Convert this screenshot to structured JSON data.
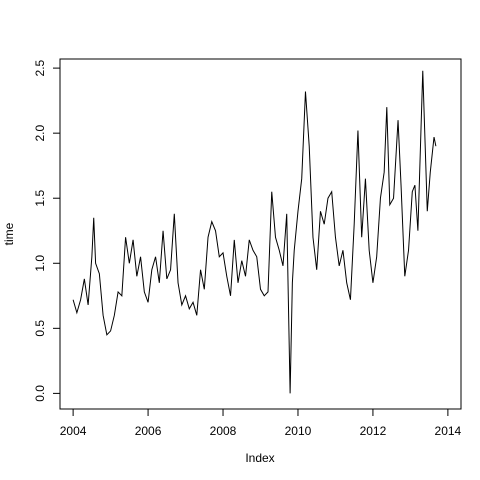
{
  "chart_data": {
    "type": "line",
    "xlabel": "Index",
    "ylabel": "time",
    "color": "#000000",
    "xlim": [
      2003.65,
      2014.35
    ],
    "ylim": [
      -0.12,
      2.57
    ],
    "xticks": [
      2004,
      2006,
      2008,
      2010,
      2012,
      2014
    ],
    "yticks": [
      {
        "value": 0,
        "label": "0.0"
      },
      0.5,
      {
        "value": 1,
        "label": "1.0"
      },
      1.5,
      {
        "value": 2,
        "label": "2.0"
      },
      2.5
    ],
    "x": [
      2004.0,
      2004.1,
      2004.2,
      2004.3,
      2004.4,
      2004.5,
      2004.55,
      2004.6,
      2004.7,
      2004.8,
      2004.9,
      2005.0,
      2005.1,
      2005.2,
      2005.3,
      2005.4,
      2005.5,
      2005.6,
      2005.7,
      2005.8,
      2005.9,
      2006.0,
      2006.1,
      2006.2,
      2006.3,
      2006.4,
      2006.5,
      2006.6,
      2006.7,
      2006.8,
      2006.9,
      2007.0,
      2007.1,
      2007.2,
      2007.3,
      2007.4,
      2007.5,
      2007.6,
      2007.7,
      2007.8,
      2007.9,
      2008.0,
      2008.1,
      2008.2,
      2008.3,
      2008.4,
      2008.5,
      2008.6,
      2008.7,
      2008.8,
      2008.9,
      2009.0,
      2009.1,
      2009.2,
      2009.3,
      2009.4,
      2009.5,
      2009.6,
      2009.7,
      2009.79,
      2009.85,
      2009.9,
      2010.0,
      2010.1,
      2010.2,
      2010.3,
      2010.4,
      2010.5,
      2010.6,
      2010.7,
      2010.8,
      2010.9,
      2011.0,
      2011.1,
      2011.2,
      2011.3,
      2011.4,
      2011.5,
      2011.6,
      2011.7,
      2011.8,
      2011.9,
      2012.0,
      2012.1,
      2012.2,
      2012.3,
      2012.37,
      2012.45,
      2012.55,
      2012.67,
      2012.75,
      2012.85,
      2012.95,
      2013.05,
      2013.12,
      2013.2,
      2013.33,
      2013.45,
      2013.53,
      2013.63,
      2013.68
    ],
    "values": [
      0.72,
      0.62,
      0.72,
      0.88,
      0.68,
      1.05,
      1.35,
      1.0,
      0.92,
      0.6,
      0.45,
      0.48,
      0.6,
      0.78,
      0.75,
      1.2,
      1.0,
      1.18,
      0.9,
      1.05,
      0.78,
      0.7,
      0.95,
      1.05,
      0.85,
      1.25,
      0.88,
      0.95,
      1.38,
      0.85,
      0.68,
      0.75,
      0.65,
      0.7,
      0.6,
      0.95,
      0.8,
      1.2,
      1.32,
      1.25,
      1.05,
      1.08,
      0.9,
      0.75,
      1.18,
      0.85,
      1.02,
      0.9,
      1.18,
      1.1,
      1.05,
      0.8,
      0.75,
      0.78,
      1.55,
      1.2,
      1.1,
      0.98,
      1.38,
      0.0,
      0.85,
      1.1,
      1.4,
      1.65,
      2.32,
      1.9,
      1.2,
      0.95,
      1.4,
      1.3,
      1.5,
      1.55,
      1.2,
      0.98,
      1.1,
      0.85,
      0.72,
      1.3,
      2.02,
      1.2,
      1.65,
      1.1,
      0.85,
      1.05,
      1.5,
      1.7,
      2.2,
      1.45,
      1.5,
      2.1,
      1.6,
      0.9,
      1.1,
      1.55,
      1.6,
      1.25,
      2.48,
      1.4,
      1.7,
      1.97,
      1.9
    ]
  }
}
